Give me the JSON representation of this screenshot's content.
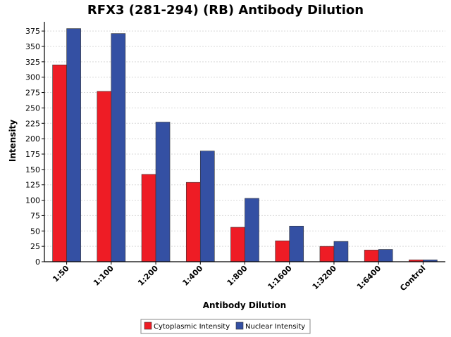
{
  "chart_data": {
    "type": "bar",
    "title": "RFX3 (281-294) (RB) Antibody Dilution",
    "xlabel": "Antibody Dilution",
    "ylabel": "Intensity",
    "categories": [
      "1:50",
      "1:100",
      "1:200",
      "1:400",
      "1:800",
      "1:1600",
      "1:3200",
      "1:6400",
      "Control"
    ],
    "series": [
      {
        "name": "Cytoplasmic Intensity",
        "color": "#ee1c25",
        "values": [
          320,
          277,
          142,
          129,
          56,
          34,
          25,
          19,
          3
        ]
      },
      {
        "name": "Nuclear Intensity",
        "color": "#3450a3",
        "values": [
          379,
          371,
          227,
          180,
          103,
          58,
          33,
          20,
          3
        ]
      }
    ],
    "ylim": [
      0,
      390
    ],
    "yticks": [
      0,
      25,
      50,
      75,
      100,
      125,
      150,
      175,
      200,
      225,
      250,
      275,
      300,
      325,
      350,
      375
    ],
    "grid": true,
    "legend_position": "bottom-center"
  }
}
